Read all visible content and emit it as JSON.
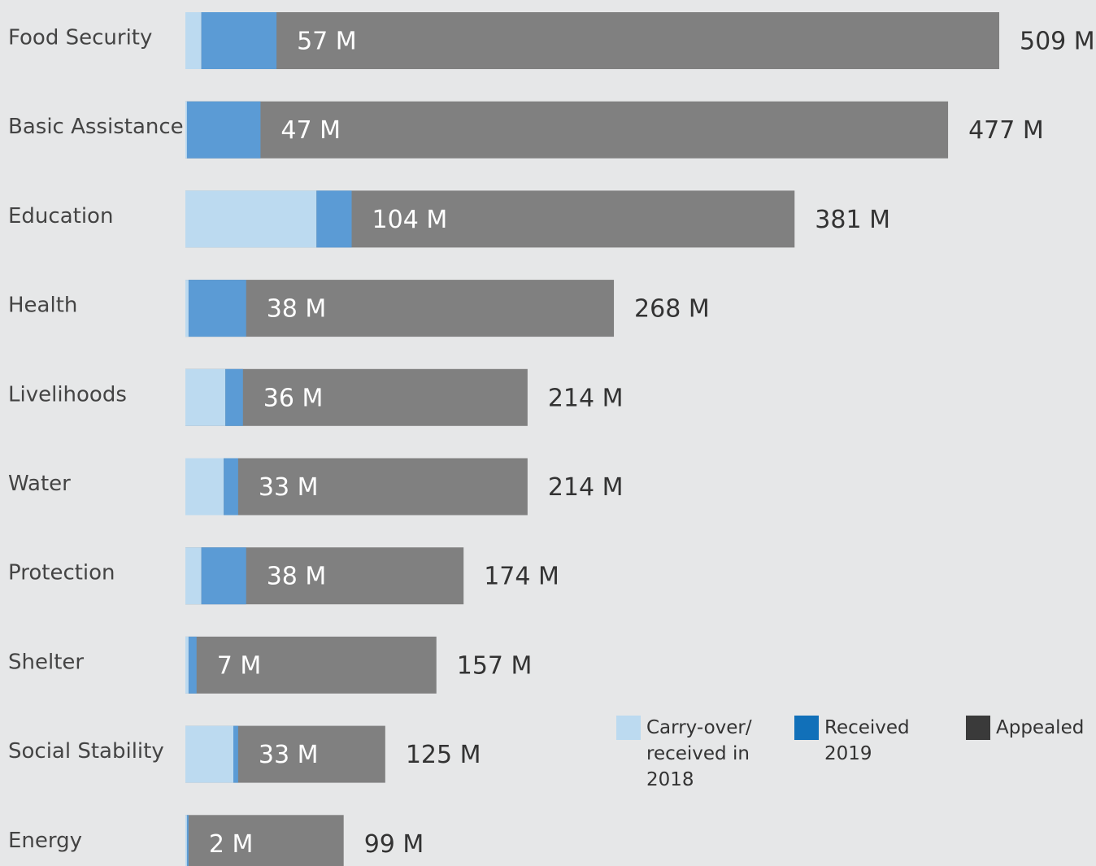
{
  "chart_data": {
    "type": "stacked-barh",
    "categories": [
      "Food Security",
      "Basic Assistance",
      "Education",
      "Health",
      "Livelihoods",
      "Water",
      "Protection",
      "Shelter",
      "Social Stability",
      "Energy"
    ],
    "series": [
      {
        "name": "Carry-over/ received in 2018",
        "color": "#bcdaf0",
        "legend_color": "#bcdaf0",
        "values": [
          10,
          1,
          82,
          2,
          25,
          24,
          10,
          2,
          30,
          1
        ]
      },
      {
        "name": "Received 2019",
        "color": "#5b9bd5",
        "legend_color": "#1170b9",
        "values": [
          47,
          46,
          22,
          36,
          11,
          9,
          28,
          5,
          3,
          1
        ]
      },
      {
        "name": "Appealed",
        "color": "#808080",
        "legend_color": "#3a3a3a",
        "values": [
          509,
          477,
          381,
          268,
          214,
          214,
          174,
          157,
          125,
          99
        ],
        "value_labels": [
          "509 M",
          "477 M",
          "381 M",
          "268 M",
          "214 M",
          "214 M",
          "174 M",
          "157 M",
          "125 M",
          "99 M"
        ]
      }
    ],
    "funded": {
      "values": [
        57,
        47,
        104,
        38,
        36,
        33,
        38,
        7,
        33,
        2
      ],
      "value_labels": [
        "57 M",
        "47 M",
        "104 M",
        "38 M",
        "36 M",
        "33 M",
        "38 M",
        "7 M",
        "33 M",
        "2 M"
      ]
    }
  }
}
